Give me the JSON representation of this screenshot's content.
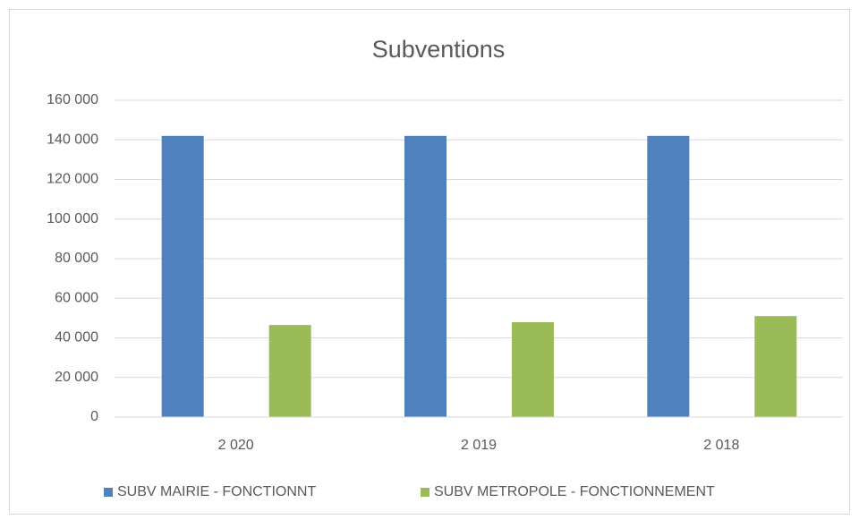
{
  "chart_data": {
    "type": "bar",
    "title": "Subventions",
    "categories": [
      "2 020",
      "2 019",
      "2 018"
    ],
    "series": [
      {
        "name": "SUBV MAIRIE - FONCTIONNT",
        "color": "#4f81bd",
        "values": [
          142000,
          142000,
          142000
        ]
      },
      {
        "name": "SUBV METROPOLE - FONCTIONNEMENT",
        "color": "#9bbb59",
        "values": [
          46500,
          47900,
          51000
        ]
      }
    ],
    "ylim": [
      0,
      160000
    ],
    "yticks": [
      0,
      {
        "value": 20000,
        "label": "20 000"
      },
      {
        "value": 40000,
        "label": "40 000"
      },
      {
        "value": 60000,
        "label": "60 000"
      },
      {
        "value": 80000,
        "label": "80 000"
      },
      {
        "value": 100000,
        "label": "100 000"
      },
      {
        "value": 120000,
        "label": "120 000"
      },
      {
        "value": 140000,
        "label": "140 000"
      },
      {
        "value": 160000,
        "label": "160 000"
      }
    ],
    "grid": true,
    "legend": "bottom"
  }
}
